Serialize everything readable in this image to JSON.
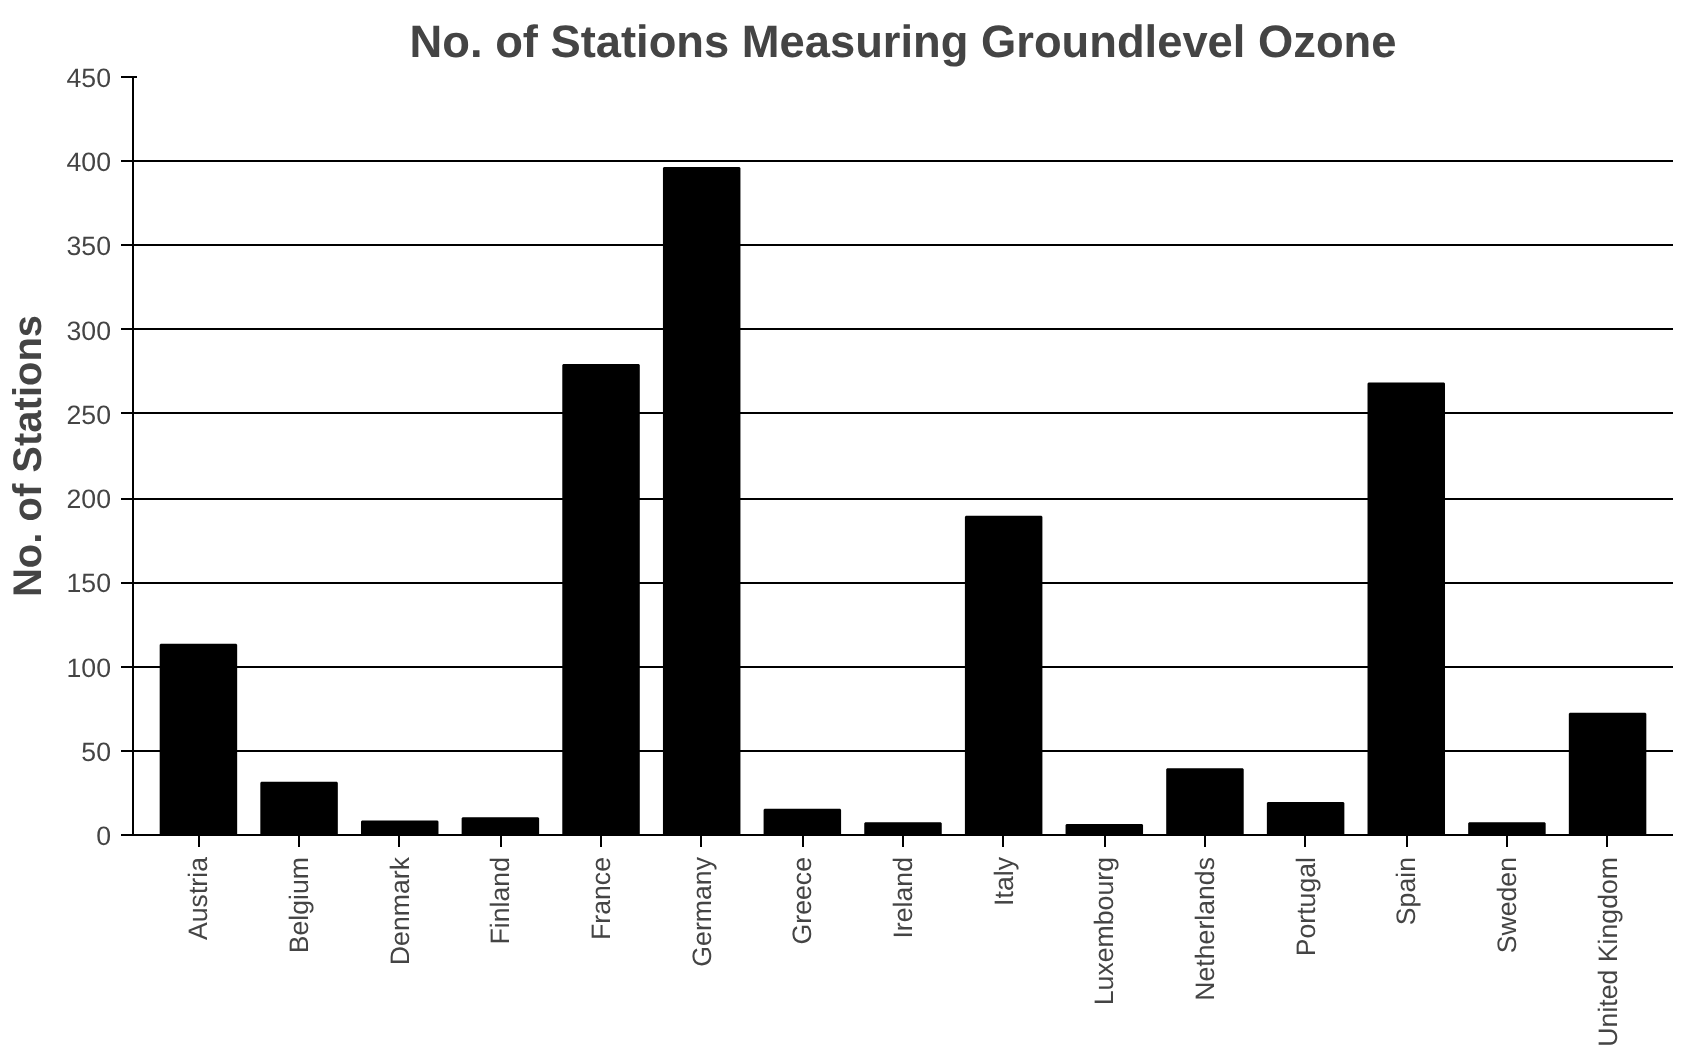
{
  "chart_data": {
    "type": "bar",
    "title": "No. of Stations Measuring Groundlevel Ozone",
    "ylabel": "No. of Stations",
    "categories": [
      "Austria",
      "Belgium",
      "Denmark",
      "Finland",
      "France",
      "Germany",
      "Greece",
      "Ireland",
      "Italy",
      "Luxembourg",
      "Netherlands",
      "Portugal",
      "Spain",
      "Sweden",
      "United Kingdom"
    ],
    "values": [
      113,
      31,
      8,
      10,
      279,
      396,
      15,
      7,
      189,
      6,
      39,
      19,
      268,
      7,
      72
    ],
    "color": "#000000",
    "ylim": [
      0,
      450
    ],
    "yticks": [
      0,
      50,
      100,
      150,
      200,
      250,
      300,
      350,
      400,
      450
    ],
    "grid": "y"
  }
}
